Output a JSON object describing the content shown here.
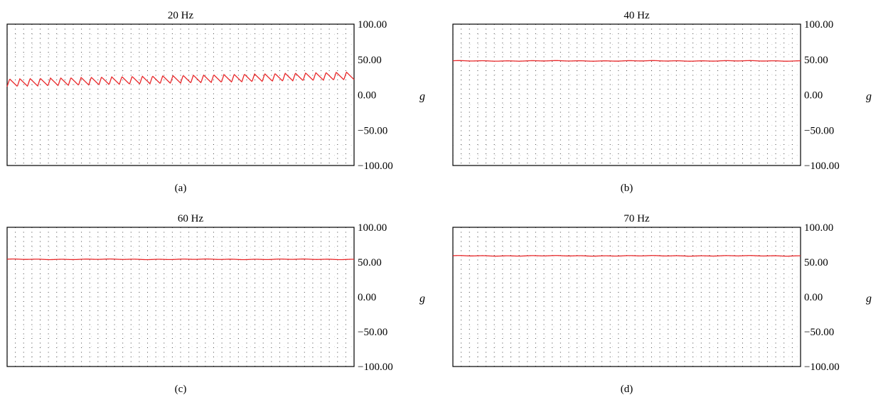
{
  "figure": {
    "unit_label": "g",
    "y_tick_labels": [
      "100.00",
      "50.00",
      "0.00",
      "−50.00",
      "−100.00"
    ],
    "trace_color": "#e8282a",
    "grid_dot_color": "#444444",
    "frame_color": "#000000"
  },
  "chart_data": [
    {
      "type": "line",
      "panel": "(a)",
      "title": "20 Hz",
      "caption": "(a)",
      "ylabel": "g",
      "ylim": [
        -100,
        100
      ],
      "yticks": [
        100,
        50,
        0,
        -50,
        -100
      ],
      "grid": true,
      "series": [
        {
          "waveform": "oscillating",
          "mean_start": 17,
          "mean_end": 27,
          "amplitude": 6,
          "cycles": 34,
          "values_range": [
            11,
            33
          ]
        }
      ]
    },
    {
      "type": "line",
      "panel": "(b)",
      "title": "40 Hz",
      "caption": "(b)",
      "ylabel": "g",
      "ylim": [
        -100,
        100
      ],
      "yticks": [
        100,
        50,
        0,
        -50,
        -100
      ],
      "grid": true,
      "series": [
        {
          "waveform": "flat",
          "value": 48
        }
      ]
    },
    {
      "type": "line",
      "panel": "(c)",
      "title": "60 Hz",
      "caption": "(c)",
      "ylabel": "g",
      "ylim": [
        -100,
        100
      ],
      "yticks": [
        100,
        50,
        0,
        -50,
        -100
      ],
      "grid": true,
      "series": [
        {
          "waveform": "flat",
          "value": 54
        }
      ]
    },
    {
      "type": "line",
      "panel": "(d)",
      "title": "70 Hz",
      "caption": "(d)",
      "ylabel": "g",
      "ylim": [
        -100,
        100
      ],
      "yticks": [
        100,
        50,
        0,
        -50,
        -100
      ],
      "grid": true,
      "series": [
        {
          "waveform": "flat",
          "value": 59
        }
      ]
    }
  ]
}
